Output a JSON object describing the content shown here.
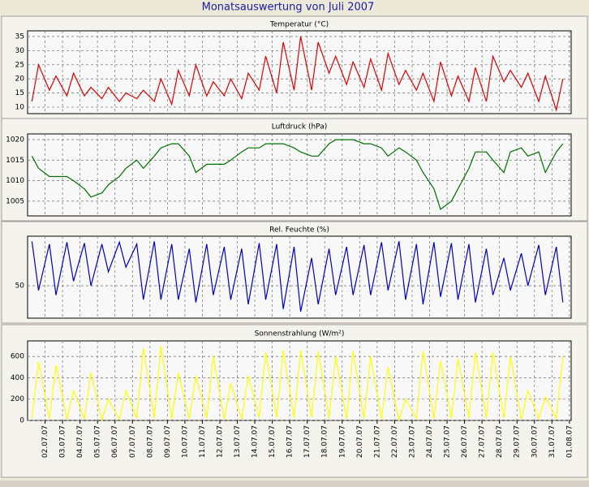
{
  "title": "Monatsauswertung von Juli 2007",
  "chart_data": [
    {
      "type": "line",
      "title": "Temperatur (°C)",
      "xlim": [
        1,
        32.1
      ],
      "ylim": [
        7.7,
        37
      ],
      "yticks": [
        10,
        15,
        20,
        25,
        30,
        35
      ],
      "grid": true,
      "x": [
        1.25,
        1.625,
        2.25,
        2.625,
        3.25,
        3.625,
        4.25,
        4.625,
        5.25,
        5.625,
        6.25,
        6.625,
        7.25,
        7.625,
        8.25,
        8.625,
        9.25,
        9.625,
        10.25,
        10.625,
        11.25,
        11.625,
        12.25,
        12.625,
        13.25,
        13.625,
        14.25,
        14.625,
        15.25,
        15.625,
        16.25,
        16.625,
        17.25,
        17.625,
        18.25,
        18.625,
        19.25,
        19.625,
        20.25,
        20.625,
        21.25,
        21.625,
        22.25,
        22.625,
        23.25,
        23.625,
        24.25,
        24.625,
        25.25,
        25.625,
        26.25,
        26.625,
        27.25,
        27.625,
        28.25,
        28.625,
        29.25,
        29.625,
        30.25,
        30.625,
        31.25,
        31.625
      ],
      "series": [
        {
          "name": "Temperatur",
          "color": "#e00000",
          "values": [
            12,
            25,
            16,
            21,
            14,
            22,
            14,
            17,
            13,
            17,
            12,
            15,
            13,
            16,
            12,
            20,
            11,
            23,
            14,
            25,
            14,
            19,
            14,
            20,
            13,
            22,
            16,
            28,
            15,
            33,
            16,
            35,
            16,
            33,
            22,
            28,
            18,
            26,
            17,
            27,
            16,
            29,
            18,
            23,
            16,
            22,
            12,
            26,
            14,
            21,
            12,
            24,
            12,
            28,
            19,
            23,
            17,
            22,
            12,
            21,
            9,
            20
          ]
        }
      ]
    },
    {
      "type": "line",
      "title": "Luftdruck (hPa)",
      "xlim": [
        1,
        32.1
      ],
      "ylim": [
        1001.4,
        1021.4
      ],
      "yticks": [
        1005,
        1010,
        1015,
        1020
      ],
      "grid": true,
      "x": [
        1.25,
        1.625,
        2.25,
        2.625,
        3.25,
        3.625,
        4.25,
        4.625,
        5.25,
        5.625,
        6.25,
        6.625,
        7.25,
        7.625,
        8.25,
        8.625,
        9.25,
        9.625,
        10.25,
        10.625,
        11.25,
        11.625,
        12.25,
        12.625,
        13.25,
        13.625,
        14.25,
        14.625,
        15.25,
        15.625,
        16.25,
        16.625,
        17.25,
        17.625,
        18.25,
        18.625,
        19.25,
        19.625,
        20.25,
        20.625,
        21.25,
        21.625,
        22.25,
        22.625,
        23.25,
        23.625,
        24.25,
        24.625,
        25.25,
        25.625,
        26.25,
        26.625,
        27.25,
        27.625,
        28.25,
        28.625,
        29.25,
        29.625,
        30.25,
        30.625,
        31.25,
        31.625
      ],
      "series": [
        {
          "name": "Luftdruck",
          "color": "#007000",
          "values": [
            1016,
            1013,
            1011,
            1011,
            1011,
            1010,
            1008,
            1006,
            1007,
            1009,
            1011,
            1013,
            1015,
            1013,
            1016,
            1018,
            1019,
            1019,
            1016,
            1012,
            1014,
            1014,
            1014,
            1015,
            1017,
            1018,
            1018,
            1019,
            1019,
            1019,
            1018,
            1017,
            1016,
            1016,
            1019,
            1020,
            1020,
            1020,
            1019,
            1019,
            1018,
            1016,
            1018,
            1017,
            1015,
            1012,
            1008,
            1003,
            1005,
            1008,
            1013,
            1017,
            1017,
            1015,
            1012,
            1017,
            1018,
            1016,
            1017,
            1012,
            1017,
            1019
          ]
        }
      ]
    },
    {
      "type": "line",
      "title": "Rel. Feuchte (%)",
      "xlim": [
        1,
        32.1
      ],
      "ylim": [
        15,
        103.5
      ],
      "yticks": [
        50
      ],
      "grid": true,
      "x": [
        1.25,
        1.625,
        2.25,
        2.625,
        3.25,
        3.625,
        4.25,
        4.625,
        5.25,
        5.625,
        6.25,
        6.625,
        7.25,
        7.625,
        8.25,
        8.625,
        9.25,
        9.625,
        10.25,
        10.625,
        11.25,
        11.625,
        12.25,
        12.625,
        13.25,
        13.625,
        14.25,
        14.625,
        15.25,
        15.625,
        16.25,
        16.625,
        17.25,
        17.625,
        18.25,
        18.625,
        19.25,
        19.625,
        20.25,
        20.625,
        21.25,
        21.625,
        22.25,
        22.625,
        23.25,
        23.625,
        24.25,
        24.625,
        25.25,
        25.625,
        26.25,
        26.625,
        27.25,
        27.625,
        28.25,
        28.625,
        29.25,
        29.625,
        30.25,
        30.625,
        31.25,
        31.625
      ],
      "series": [
        {
          "name": "Rel. Feuchte",
          "color": "#0000c8",
          "values": [
            98,
            45,
            95,
            40,
            97,
            55,
            96,
            50,
            95,
            65,
            97,
            70,
            95,
            35,
            98,
            35,
            95,
            35,
            90,
            32,
            95,
            40,
            92,
            35,
            90,
            30,
            96,
            35,
            95,
            25,
            92,
            22,
            80,
            30,
            90,
            40,
            92,
            40,
            94,
            40,
            97,
            45,
            98,
            35,
            95,
            30,
            97,
            38,
            96,
            35,
            95,
            32,
            90,
            40,
            80,
            45,
            85,
            50,
            94,
            40,
            92,
            32
          ]
        }
      ]
    },
    {
      "type": "line",
      "title": "Sonnenstrahlung (W/m²)",
      "xlim": [
        1,
        32.1
      ],
      "ylim": [
        0,
        746
      ],
      "yticks": [
        0,
        200,
        400,
        600
      ],
      "grid": true,
      "x": [
        1.25,
        1.625,
        2.25,
        2.625,
        3.25,
        3.625,
        4.25,
        4.625,
        5.25,
        5.625,
        6.25,
        6.625,
        7.25,
        7.625,
        8.25,
        8.625,
        9.25,
        9.625,
        10.25,
        10.625,
        11.25,
        11.625,
        12.25,
        12.625,
        13.25,
        13.625,
        14.25,
        14.625,
        15.25,
        15.625,
        16.25,
        16.625,
        17.25,
        17.625,
        18.25,
        18.625,
        19.25,
        19.625,
        20.25,
        20.625,
        21.25,
        21.625,
        22.25,
        22.625,
        23.25,
        23.625,
        24.25,
        24.625,
        25.25,
        25.625,
        26.25,
        26.625,
        27.25,
        27.625,
        28.25,
        28.625,
        29.25,
        29.625,
        30.25,
        30.625,
        31.25,
        31.625
      ],
      "xticks": [
        {
          "value": 2,
          "label": "02.07.07"
        },
        {
          "value": 3,
          "label": "03.07.07"
        },
        {
          "value": 4,
          "label": "04.07.07"
        },
        {
          "value": 5,
          "label": "05.07.07"
        },
        {
          "value": 6,
          "label": "06.07.07"
        },
        {
          "value": 7,
          "label": "07.07.07"
        },
        {
          "value": 8,
          "label": "08.07.07"
        },
        {
          "value": 9,
          "label": "09.07.07"
        },
        {
          "value": 10,
          "label": "10.07.07"
        },
        {
          "value": 11,
          "label": "11.07.07"
        },
        {
          "value": 12,
          "label": "12.07.07"
        },
        {
          "value": 13,
          "label": "13.07.07"
        },
        {
          "value": 14,
          "label": "14.07.07"
        },
        {
          "value": 15,
          "label": "15.07.07"
        },
        {
          "value": 16,
          "label": "16.07.07"
        },
        {
          "value": 17,
          "label": "17.07.07"
        },
        {
          "value": 18,
          "label": "18.07.07"
        },
        {
          "value": 19,
          "label": "19.07.07"
        },
        {
          "value": 20,
          "label": "20.07.07"
        },
        {
          "value": 21,
          "label": "21.07.07"
        },
        {
          "value": 22,
          "label": "22.07.07"
        },
        {
          "value": 23,
          "label": "23.07.07"
        },
        {
          "value": 24,
          "label": "24.07.07"
        },
        {
          "value": 25,
          "label": "25.07.07"
        },
        {
          "value": 26,
          "label": "26.07.07"
        },
        {
          "value": 27,
          "label": "27.07.07"
        },
        {
          "value": 28,
          "label": "28.07.07"
        },
        {
          "value": 29,
          "label": "29.07.07"
        },
        {
          "value": 30,
          "label": "30.07.07"
        },
        {
          "value": 31,
          "label": "31.07.07"
        },
        {
          "value": 32,
          "label": "01.08.07"
        }
      ],
      "series": [
        {
          "name": "Sonnenstrahlung",
          "color": "#ffff00",
          "values": [
            20,
            550,
            15,
            520,
            10,
            280,
            10,
            450,
            5,
            200,
            10,
            280,
            20,
            680,
            20,
            700,
            15,
            450,
            15,
            420,
            20,
            600,
            10,
            350,
            10,
            420,
            25,
            640,
            25,
            660,
            25,
            660,
            25,
            650,
            20,
            600,
            15,
            650,
            20,
            600,
            10,
            500,
            5,
            200,
            20,
            650,
            15,
            560,
            20,
            580,
            20,
            640,
            20,
            640,
            20,
            600,
            10,
            280,
            15,
            220,
            20,
            600
          ]
        }
      ]
    }
  ]
}
